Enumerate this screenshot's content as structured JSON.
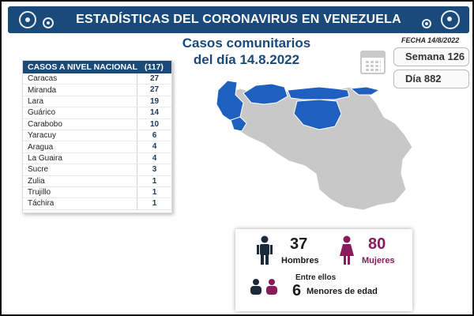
{
  "header": {
    "title": "ESTADÍSTICAS DEL CORONAVIRUS EN VENEZUELA"
  },
  "subtitle": {
    "line1": "Casos comunitarios",
    "line2": "del día 14.8.2022"
  },
  "fecha": "FECHA 14/8/2022",
  "semana": "Semana 126",
  "dia": "Día 882",
  "table": {
    "header_label": "CASOS A NIVEL NACIONAL",
    "header_total": "(117)",
    "rows": [
      {
        "name": "Caracas",
        "value": "27"
      },
      {
        "name": "Miranda",
        "value": "27"
      },
      {
        "name": "Lara",
        "value": "19"
      },
      {
        "name": "Guárico",
        "value": "14"
      },
      {
        "name": "Carabobo",
        "value": "10"
      },
      {
        "name": "Yaracuy",
        "value": "6"
      },
      {
        "name": "Aragua",
        "value": "4"
      },
      {
        "name": "La Guaira",
        "value": "4"
      },
      {
        "name": "Sucre",
        "value": "3"
      },
      {
        "name": "Zulia",
        "value": "1"
      },
      {
        "name": "Trujillo",
        "value": "1"
      },
      {
        "name": "Táchira",
        "value": "1"
      }
    ]
  },
  "stats": {
    "men_count": "37",
    "men_label": "Hombres",
    "women_count": "80",
    "women_label": "Mujeres",
    "entre": "Entre ellos",
    "minors_count": "6",
    "minors_label": "Menores de edad"
  },
  "colors": {
    "banner": "#1a4a7a",
    "highlight_region": "#1f5fbf",
    "other_region": "#c8c8c8",
    "women_accent": "#8a1a5a"
  }
}
